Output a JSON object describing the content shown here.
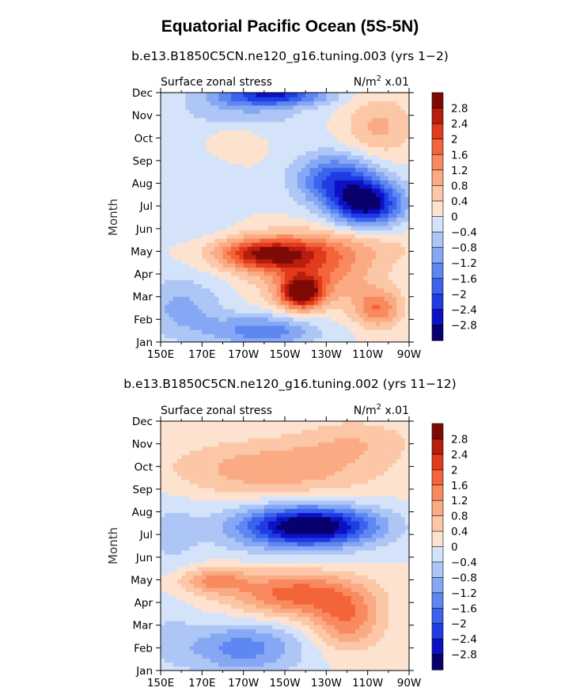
{
  "title": "Equatorial Pacific Ocean (5S-5N)",
  "panels": [
    {
      "subtitle": "b.e13.B1850C5CN.ne120_g16.tuning.003 (yrs 1−2)",
      "left_label": "Surface zonal stress",
      "units_base": "N/m",
      "units_sup": "2",
      "units_scale": "x.01",
      "ylabel": "Month"
    },
    {
      "subtitle": "b.e13.B1850C5CN.ne120_g16.tuning.002 (yrs 11−12)",
      "left_label": "Surface zonal stress",
      "units_base": "N/m",
      "units_sup": "2",
      "units_scale": "x.01",
      "ylabel": "Month"
    }
  ],
  "chart_data": [
    {
      "type": "heatmap",
      "title": "b.e13.B1850C5CN.ne120_g16.tuning.003 (yrs 1−2)",
      "variable": "Surface zonal stress",
      "units": "N/m2 x.01",
      "xlabel": "",
      "ylabel": "Month",
      "x_ticks": [
        "150E",
        "170E",
        "170W",
        "150W",
        "130W",
        "110W",
        "90W"
      ],
      "y_ticks": [
        "Jan",
        "Feb",
        "Mar",
        "Apr",
        "May",
        "Jun",
        "Jul",
        "Aug",
        "Sep",
        "Oct",
        "Nov",
        "Dec"
      ],
      "x": [
        150,
        155,
        160,
        165,
        170,
        175,
        180,
        185,
        190,
        195,
        200,
        205,
        210,
        215,
        220,
        225,
        230,
        235,
        240,
        245,
        250,
        255,
        260,
        265,
        270
      ],
      "y": [
        1,
        2,
        3,
        4,
        5,
        6,
        7,
        8,
        9,
        10,
        11,
        12
      ],
      "features": [
        {
          "x": 218,
          "y": 3.2,
          "value": 3.0,
          "sx": 7,
          "sy": 0.5
        },
        {
          "x": 200,
          "y": 4.9,
          "value": 2.4,
          "sx": 17,
          "sy": 0.5
        },
        {
          "x": 225,
          "y": 4.1,
          "value": 1.4,
          "sx": 20,
          "sy": 1.0
        },
        {
          "x": 255,
          "y": 2.5,
          "value": 1.5,
          "sx": 8,
          "sy": 0.6
        },
        {
          "x": 235,
          "y": 5.2,
          "value": 0.6,
          "sx": 30,
          "sy": 0.6
        },
        {
          "x": 250,
          "y": 7.1,
          "value": -2.9,
          "sx": 12,
          "sy": 0.7
        },
        {
          "x": 235,
          "y": 8.2,
          "value": -2.0,
          "sx": 14,
          "sy": 0.8
        },
        {
          "x": 200,
          "y": 1.5,
          "value": -1.5,
          "sx": 18,
          "sy": 0.5
        },
        {
          "x": 205,
          "y": 11.9,
          "value": -2.0,
          "sx": 18,
          "sy": 0.3
        },
        {
          "x": 190,
          "y": 11.4,
          "value": -0.8,
          "sx": 22,
          "sy": 0.8
        },
        {
          "x": 160,
          "y": 2.5,
          "value": -0.9,
          "sx": 15,
          "sy": 1.0
        },
        {
          "x": 255,
          "y": 10.5,
          "value": 0.9,
          "sx": 12,
          "sy": 1.0
        },
        {
          "x": 185,
          "y": 9.9,
          "value": 0.5,
          "sx": 10,
          "sy": 0.6
        },
        {
          "x": 170,
          "y": 7.5,
          "value": -0.4,
          "sx": 12,
          "sy": 1.5
        }
      ],
      "value_range": [
        -3.2,
        3.2
      ],
      "contour_interval": 0.4,
      "colorbar_labels": [
        "2.8",
        "2.4",
        "2",
        "1.6",
        "1.2",
        "0.8",
        "0.4",
        "0",
        "−0.4",
        "−0.8",
        "−1.2",
        "−1.6",
        "−2",
        "−2.4",
        "−2.8"
      ]
    },
    {
      "type": "heatmap",
      "title": "b.e13.B1850C5CN.ne120_g16.tuning.002 (yrs 11−12)",
      "variable": "Surface zonal stress",
      "units": "N/m2 x.01",
      "xlabel": "",
      "ylabel": "Month",
      "x_ticks": [
        "150E",
        "170E",
        "170W",
        "150W",
        "130W",
        "110W",
        "90W"
      ],
      "y_ticks": [
        "Jan",
        "Feb",
        "Mar",
        "Apr",
        "May",
        "Jun",
        "Jul",
        "Aug",
        "Sep",
        "Oct",
        "Nov",
        "Dec"
      ],
      "x": [
        150,
        155,
        160,
        165,
        170,
        175,
        180,
        185,
        190,
        195,
        200,
        205,
        210,
        215,
        220,
        225,
        230,
        235,
        240,
        245,
        250,
        255,
        260,
        265,
        270
      ],
      "y": [
        1,
        2,
        3,
        4,
        5,
        6,
        7,
        8,
        9,
        10,
        11,
        12
      ],
      "features": [
        {
          "x": 225,
          "y": 7.4,
          "value": -2.6,
          "sx": 22,
          "sy": 0.6
        },
        {
          "x": 210,
          "y": 7.3,
          "value": -1.0,
          "sx": 25,
          "sy": 0.8
        },
        {
          "x": 215,
          "y": 4.4,
          "value": 1.8,
          "sx": 22,
          "sy": 0.7
        },
        {
          "x": 240,
          "y": 3.2,
          "value": 1.4,
          "sx": 12,
          "sy": 0.9
        },
        {
          "x": 175,
          "y": 5.0,
          "value": 1.2,
          "sx": 12,
          "sy": 0.4
        },
        {
          "x": 205,
          "y": 9.9,
          "value": 1.1,
          "sx": 35,
          "sy": 0.9
        },
        {
          "x": 245,
          "y": 11.2,
          "value": 0.6,
          "sx": 20,
          "sy": 0.7
        },
        {
          "x": 190,
          "y": 2.0,
          "value": -1.4,
          "sx": 20,
          "sy": 0.8
        },
        {
          "x": 155,
          "y": 7.0,
          "value": -0.5,
          "sx": 10,
          "sy": 1.2
        },
        {
          "x": 155,
          "y": 2.5,
          "value": -0.4,
          "sx": 8,
          "sy": 1.0
        }
      ],
      "value_range": [
        -3.2,
        3.2
      ],
      "contour_interval": 0.4,
      "colorbar_labels": [
        "2.8",
        "2.4",
        "2",
        "1.6",
        "1.2",
        "0.8",
        "0.4",
        "0",
        "−0.4",
        "−0.8",
        "−1.2",
        "−1.6",
        "−2",
        "−2.4",
        "−2.8"
      ]
    }
  ],
  "colormap": [
    "#08006e",
    "#0d11c6",
    "#1f3ce4",
    "#3a63ee",
    "#5f87f2",
    "#86a8f4",
    "#aec6f6",
    "#d4e3fa",
    "#fde3cf",
    "#fcc7a7",
    "#fbab84",
    "#f98a5f",
    "#f4643b",
    "#e23a1c",
    "#b81d0d",
    "#7f0a05"
  ]
}
